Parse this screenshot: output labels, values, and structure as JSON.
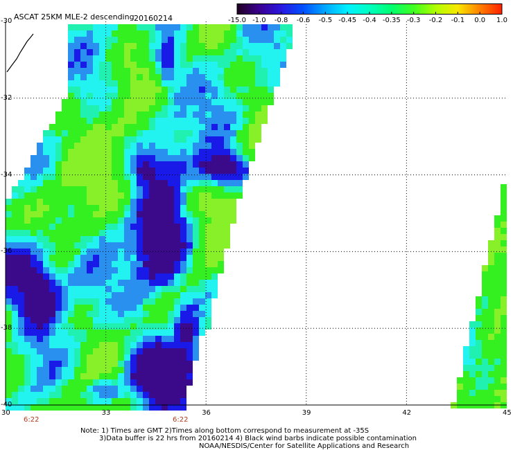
{
  "header": {
    "title": "ASCAT 25KM MLE-2 descending",
    "date": "20160214"
  },
  "colorbar": {
    "labels": [
      "-15.0",
      "-1.0",
      "-0.8",
      "-0.6",
      "-0.5",
      "-0.45",
      "-0.4",
      "-0.35",
      "-0.3",
      "-0.2",
      "-0.1",
      "0.0",
      "1.0"
    ],
    "colors": [
      "#200020",
      "#3a0090",
      "#2a18e0",
      "#0050ff",
      "#00a8ff",
      "#00f0ff",
      "#00ffc0",
      "#00ff70",
      "#40ff20",
      "#b0ff00",
      "#f8e800",
      "#ff8000",
      "#ff2000"
    ]
  },
  "map": {
    "lat_labels": [
      "-30",
      "-32",
      "-34",
      "-36",
      "-38",
      "-40"
    ],
    "lon_labels": [
      "30",
      "33",
      "36",
      "39",
      "42",
      "45"
    ],
    "time_labels": [
      "6:22",
      "6:22"
    ],
    "grid": true,
    "swath_palette": {
      "very_low": "#3a0a8a",
      "low": "#1a1ae8",
      "mid_low": "#2a90f0",
      "cyan": "#22f2f0",
      "aqua": "#20f0b0",
      "green": "#34f020",
      "lime": "#88f028"
    }
  },
  "footer": {
    "note_line1": "Note: 1) Times are GMT 2)Times along bottom correspond to measurement at -35S",
    "note_line2": "3)Data buffer is 22 hrs from 20160214 4) Black wind barbs indicate possible contamination",
    "credit": "NOAA/NESDIS/Center for Satellite Applications and Research"
  }
}
